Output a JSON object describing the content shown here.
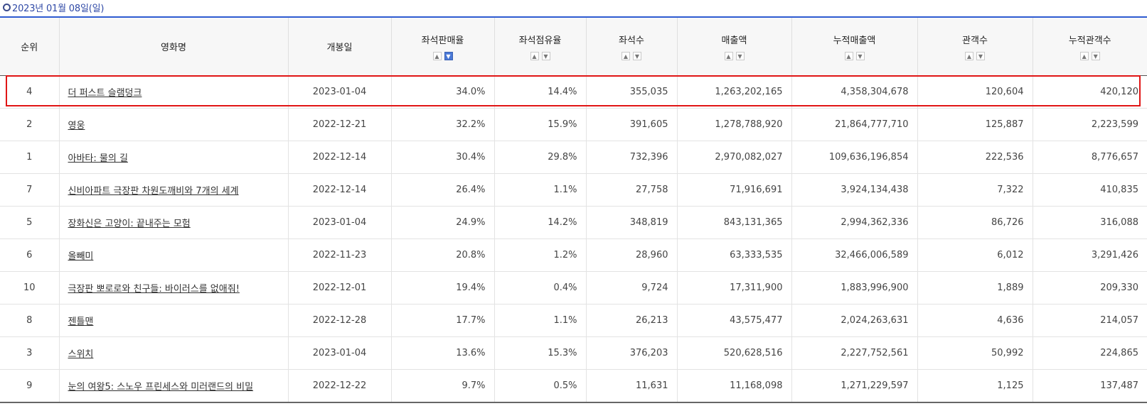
{
  "date_header": "2023년 01월 08일(일)",
  "columns": [
    "순위",
    "영화명",
    "개봉일",
    "좌석판매율",
    "좌석점유율",
    "좌석수",
    "매출액",
    "누적매출액",
    "관객수",
    "누적관객수"
  ],
  "rows": [
    {
      "rank": "4",
      "title": "더 퍼스트 슬램덩크",
      "open": "2023-01-04",
      "sale_rate": "34.0%",
      "share": "14.4%",
      "seats": "355,035",
      "sales": "1,263,202,165",
      "acc_sales": "4,358,304,678",
      "audience": "120,604",
      "acc_audience": "420,120"
    },
    {
      "rank": "2",
      "title": "영웅",
      "open": "2022-12-21",
      "sale_rate": "32.2%",
      "share": "15.9%",
      "seats": "391,605",
      "sales": "1,278,788,920",
      "acc_sales": "21,864,777,710",
      "audience": "125,887",
      "acc_audience": "2,223,599"
    },
    {
      "rank": "1",
      "title": "아바타: 물의 길",
      "open": "2022-12-14",
      "sale_rate": "30.4%",
      "share": "29.8%",
      "seats": "732,396",
      "sales": "2,970,082,027",
      "acc_sales": "109,636,196,854",
      "audience": "222,536",
      "acc_audience": "8,776,657"
    },
    {
      "rank": "7",
      "title": "신비아파트 극장판 차원도깨비와 7개의 세계",
      "open": "2022-12-14",
      "sale_rate": "26.4%",
      "share": "1.1%",
      "seats": "27,758",
      "sales": "71,916,691",
      "acc_sales": "3,924,134,438",
      "audience": "7,322",
      "acc_audience": "410,835"
    },
    {
      "rank": "5",
      "title": "장화신은 고양이: 끝내주는 모험",
      "open": "2023-01-04",
      "sale_rate": "24.9%",
      "share": "14.2%",
      "seats": "348,819",
      "sales": "843,131,365",
      "acc_sales": "2,994,362,336",
      "audience": "86,726",
      "acc_audience": "316,088"
    },
    {
      "rank": "6",
      "title": "올빼미",
      "open": "2022-11-23",
      "sale_rate": "20.8%",
      "share": "1.2%",
      "seats": "28,960",
      "sales": "63,333,535",
      "acc_sales": "32,466,006,589",
      "audience": "6,012",
      "acc_audience": "3,291,426"
    },
    {
      "rank": "10",
      "title": "극장판 뽀로로와 친구들: 바이러스를 없애줘!",
      "open": "2022-12-01",
      "sale_rate": "19.4%",
      "share": "0.4%",
      "seats": "9,724",
      "sales": "17,311,900",
      "acc_sales": "1,883,996,900",
      "audience": "1,889",
      "acc_audience": "209,330"
    },
    {
      "rank": "8",
      "title": "젠틀맨",
      "open": "2022-12-28",
      "sale_rate": "17.7%",
      "share": "1.1%",
      "seats": "26,213",
      "sales": "43,575,477",
      "acc_sales": "2,024,263,631",
      "audience": "4,636",
      "acc_audience": "214,057"
    },
    {
      "rank": "3",
      "title": "스위치",
      "open": "2023-01-04",
      "sale_rate": "13.6%",
      "share": "15.3%",
      "seats": "376,203",
      "sales": "520,628,516",
      "acc_sales": "2,227,752,561",
      "audience": "50,992",
      "acc_audience": "224,865"
    },
    {
      "rank": "9",
      "title": "눈의 여왕5: 스노우 프린세스와 미러랜드의 비밀",
      "open": "2022-12-22",
      "sale_rate": "9.7%",
      "share": "0.5%",
      "seats": "11,631",
      "sales": "11,168,098",
      "acc_sales": "1,271,229,597",
      "audience": "1,125",
      "acc_audience": "137,487"
    }
  ],
  "sort_icons": {
    "up": "▲",
    "down": "▼"
  },
  "highlight_color": "#e01515",
  "accent_color": "#2e5bd1"
}
